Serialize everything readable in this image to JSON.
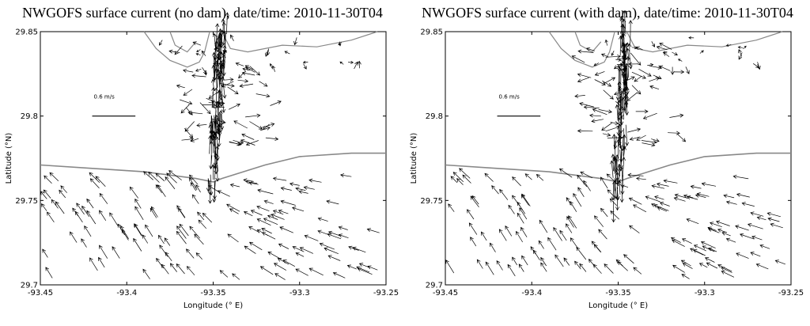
{
  "chart_data": [
    {
      "type": "quiver",
      "title": "NWGOFS surface current (no dam), date/time: 2010-11-30T04",
      "xlabel": "Longitude (° E)",
      "ylabel": "Latitude (°N)",
      "xlim": [
        -93.45,
        -93.25
      ],
      "ylim": [
        29.7,
        29.85
      ],
      "xticks": [
        -93.45,
        -93.4,
        -93.35,
        -93.3,
        -93.25
      ],
      "yticks": [
        29.7,
        29.75,
        29.8,
        29.85
      ],
      "xtick_labels": [
        "-93.45",
        "-93.4",
        "-93.35",
        "-93.3",
        "-93.25"
      ],
      "ytick_labels": [
        "29.7",
        "29.75",
        "29.8",
        "29.85"
      ],
      "scale_label": "0.6 m/s",
      "scale_speed": 0.6,
      "coastline_color": "#888888",
      "vector_color": "#000000",
      "channel_end_lat": 29.76,
      "coast": [
        [
          -93.45,
          29.771
        ],
        [
          -93.42,
          29.769
        ],
        [
          -93.39,
          29.767
        ],
        [
          -93.36,
          29.763
        ],
        [
          -93.35,
          29.761
        ],
        [
          -93.345,
          29.763
        ],
        [
          -93.32,
          29.771
        ],
        [
          -93.3,
          29.776
        ],
        [
          -93.27,
          29.778
        ],
        [
          -93.25,
          29.778
        ]
      ],
      "lake_shores": [
        [
          [
            -93.39,
            29.85
          ],
          [
            -93.383,
            29.84
          ],
          [
            -93.375,
            29.833
          ],
          [
            -93.365,
            29.829
          ],
          [
            -93.358,
            29.832
          ],
          [
            -93.355,
            29.838
          ],
          [
            -93.352,
            29.85
          ]
        ],
        [
          [
            -93.345,
            29.85
          ],
          [
            -93.34,
            29.84
          ],
          [
            -93.33,
            29.838
          ],
          [
            -93.31,
            29.842
          ],
          [
            -93.29,
            29.841
          ],
          [
            -93.27,
            29.845
          ],
          [
            -93.255,
            29.85
          ]
        ],
        [
          [
            -93.375,
            29.85
          ],
          [
            -93.372,
            29.842
          ],
          [
            -93.365,
            29.838
          ],
          [
            -93.36,
            29.844
          ]
        ]
      ]
    },
    {
      "type": "quiver",
      "title": "NWGOFS surface current (with dam), date/time: 2010-11-30T04",
      "xlabel": "Longitude (° E)",
      "ylabel": "Latitude (°N)",
      "xlim": [
        -93.45,
        -93.25
      ],
      "ylim": [
        29.7,
        29.85
      ],
      "xticks": [
        -93.45,
        -93.4,
        -93.35,
        -93.3,
        -93.25
      ],
      "yticks": [
        29.7,
        29.75,
        29.8,
        29.85
      ],
      "xtick_labels": [
        "-93.45",
        "-93.4",
        "-93.35",
        "-93.3",
        "-93.25"
      ],
      "ytick_labels": [
        "29.7",
        "29.75",
        "29.8",
        "29.85"
      ],
      "scale_label": "0.6 m/s",
      "scale_speed": 0.6,
      "coastline_color": "#888888",
      "vector_color": "#000000",
      "channel_end_lat": 29.745,
      "coast": [
        [
          -93.45,
          29.771
        ],
        [
          -93.42,
          29.769
        ],
        [
          -93.39,
          29.767
        ],
        [
          -93.36,
          29.763
        ],
        [
          -93.35,
          29.761
        ],
        [
          -93.345,
          29.763
        ],
        [
          -93.32,
          29.771
        ],
        [
          -93.3,
          29.776
        ],
        [
          -93.27,
          29.778
        ],
        [
          -93.25,
          29.778
        ]
      ],
      "lake_shores": [
        [
          [
            -93.39,
            29.85
          ],
          [
            -93.383,
            29.84
          ],
          [
            -93.375,
            29.833
          ],
          [
            -93.365,
            29.829
          ],
          [
            -93.358,
            29.832
          ],
          [
            -93.355,
            29.838
          ],
          [
            -93.352,
            29.85
          ]
        ],
        [
          [
            -93.345,
            29.85
          ],
          [
            -93.34,
            29.84
          ],
          [
            -93.33,
            29.838
          ],
          [
            -93.31,
            29.842
          ],
          [
            -93.29,
            29.841
          ],
          [
            -93.27,
            29.845
          ],
          [
            -93.255,
            29.85
          ]
        ],
        [
          [
            -93.375,
            29.85
          ],
          [
            -93.372,
            29.842
          ],
          [
            -93.365,
            29.838
          ],
          [
            -93.36,
            29.844
          ]
        ]
      ]
    }
  ]
}
